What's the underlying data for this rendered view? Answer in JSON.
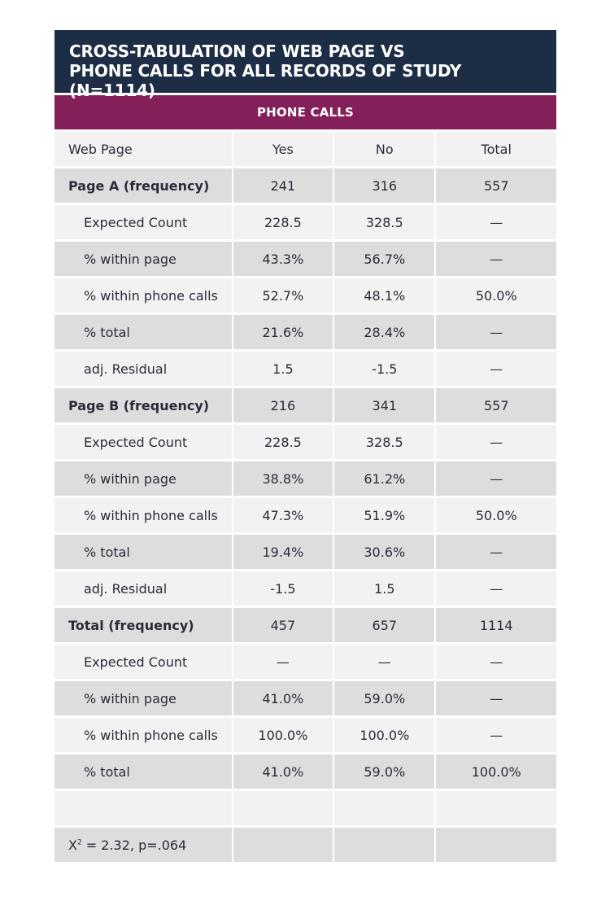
{
  "title": {
    "line1": "CROSS-TABULATION OF WEB PAGE VS",
    "line2": "PHONE CALLS FOR ALL RECORDS OF STUDY (N=1114)"
  },
  "subheader": "PHONE CALLS",
  "columns": [
    "Web Page",
    "Yes",
    "No",
    "Total"
  ],
  "rows": [
    {
      "label": "Page A (frequency)",
      "yes": "241",
      "no": "316",
      "total": "557"
    },
    {
      "label": "Expected Count",
      "yes": "228.5",
      "no": "328.5",
      "total": "—"
    },
    {
      "label": "% within page",
      "yes": "43.3%",
      "no": "56.7%",
      "total": "—"
    },
    {
      "label": "% within phone calls",
      "yes": "52.7%",
      "no": "48.1%",
      "total": "50.0%"
    },
    {
      "label": "% total",
      "yes": "21.6%",
      "no": "28.4%",
      "total": "—"
    },
    {
      "label": "adj. Residual",
      "yes": "1.5",
      "no": "-1.5",
      "total": "—"
    },
    {
      "label": "Page B (frequency)",
      "yes": "216",
      "no": "341",
      "total": "557"
    },
    {
      "label": "Expected Count",
      "yes": "228.5",
      "no": "328.5",
      "total": "—"
    },
    {
      "label": "% within page",
      "yes": "38.8%",
      "no": "61.2%",
      "total": "—"
    },
    {
      "label": "% within phone calls",
      "yes": "47.3%",
      "no": "51.9%",
      "total": "50.0%"
    },
    {
      "label": "% total",
      "yes": "19.4%",
      "no": "30.6%",
      "total": "—"
    },
    {
      "label": "adj. Residual",
      "yes": "-1.5",
      "no": "1.5",
      "total": "—"
    },
    {
      "label": "Total (frequency)",
      "yes": "457",
      "no": "657",
      "total": "1114"
    },
    {
      "label": "Expected Count",
      "yes": "—",
      "no": "—",
      "total": "—"
    },
    {
      "label": "% within page",
      "yes": "41.0%",
      "no": "59.0%",
      "total": "—"
    },
    {
      "label": "% within phone calls",
      "yes": "100.0%",
      "no": "100.0%",
      "total": "—"
    },
    {
      "label": "% total",
      "yes": "41.0%",
      "no": "59.0%",
      "total": "100.0%"
    }
  ],
  "footnote": {
    "prefix": "X",
    "superscript": "2",
    "rest": " = 2.32, p=.064"
  },
  "colors": {
    "title_bg": "#1d2d45",
    "subheader_bg": "#842059",
    "row_light": "#f2f2f2",
    "row_dark": "#dddddd"
  }
}
